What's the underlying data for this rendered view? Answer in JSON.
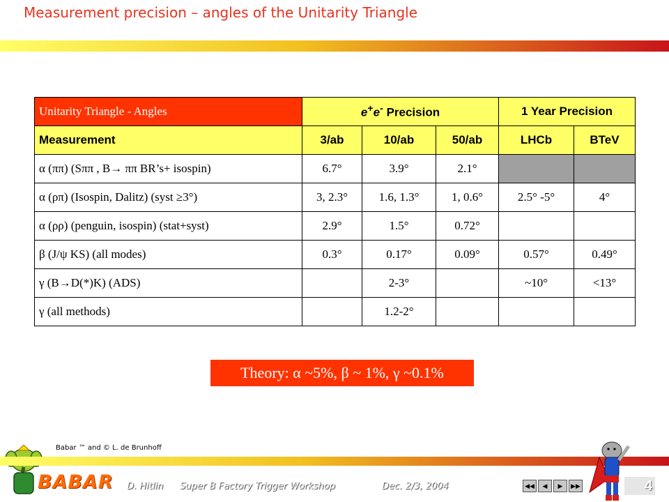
{
  "title": "Measurement precision – angles of the Unitarity Triangle",
  "table": {
    "header_main": "Unitarity Triangle - Angles",
    "header_ee_part": "e",
    "header_ee_sup1": "+",
    "header_ee_mid": "e",
    "header_ee_sup2": "-",
    "header_ee_suffix": " Precision",
    "header_year": "1 Year Precision",
    "measurement_label": "Measurement",
    "columns": [
      "3/ab",
      "10/ab",
      "50/ab",
      "LHCb",
      "BTeV"
    ],
    "rows": [
      {
        "label": "α (ππ) (Sππ , B→ ππ BR’s+ isospin)",
        "values": [
          "6.7°",
          "3.9°",
          "2.1°",
          "",
          ""
        ]
      },
      {
        "label": "α (ρπ) (Isospin, Dalitz) (syst ≥3°)",
        "values": [
          "3, 2.3°",
          "1.6, 1.3°",
          "1, 0.6°",
          "2.5° -5°",
          "4°"
        ]
      },
      {
        "label": "α (ρρ) (penguin, isospin) (stat+syst)",
        "values": [
          "2.9°",
          "1.5°",
          "0.72°",
          "",
          ""
        ]
      },
      {
        "label": "β (J/ψ KS) (all modes)",
        "values": [
          "0.3°",
          "0.17°",
          "0.09°",
          "0.57°",
          "0.49°"
        ]
      },
      {
        "label": "γ (B→D(*)K) (ADS)",
        "values": [
          "",
          "2-3°",
          "",
          "~10°",
          "<13°"
        ]
      },
      {
        "label": "γ (all methods)",
        "values": [
          "",
          "1.2-2°",
          "",
          "",
          ""
        ]
      }
    ]
  },
  "theory": "Theory: α ~5%, β ~ 1%, γ ~0.1%",
  "credit": "Babar ™ and © L. de Brunhoff",
  "logo_text": "BABAR",
  "footer": {
    "author": "D. Hitlin",
    "event": "Super B Factory Trigger Workshop",
    "date": "Dec. 2/3, 2004"
  },
  "page_number": "4",
  "nav_buttons": [
    "first-icon",
    "prev-icon",
    "next-icon",
    "last-icon"
  ],
  "colors": {
    "title": "#e8321e",
    "header_red": "#ff3300",
    "header_yellow": "#ffff66",
    "grey_cell": "#a0a0a0"
  }
}
